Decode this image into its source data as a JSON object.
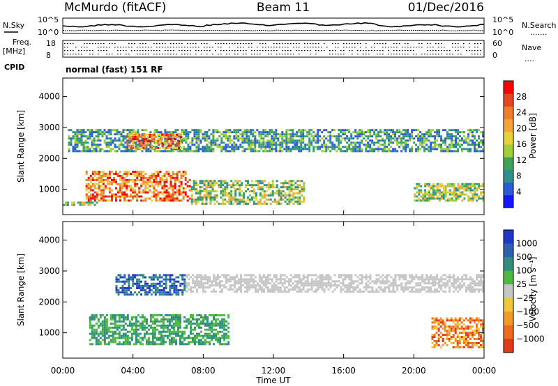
{
  "header": {
    "station": "McMurdo (fitACF)",
    "beam": "Beam 11",
    "date": "01/Dec/2016"
  },
  "status_panel": {
    "nsky_label": "N.Sky",
    "nsearch_label": "N.Search",
    "nsearch_marker": ".......",
    "freq_label": "Freq.",
    "freq_unit": "[MHz]",
    "nave_label": "Nave",
    "nave_marker": "....",
    "cpid_label": "CPID",
    "cpid_text": "normal (fast) 151 RF",
    "noise_ticks": [
      "10^5",
      "10^0"
    ],
    "freq_ticks": [
      "18",
      "8"
    ],
    "nave_ticks": [
      "60",
      "0"
    ]
  },
  "chart_data": [
    {
      "type": "heatmap",
      "title": "",
      "xlabel": "Time UT",
      "ylabel": "Slant Range [km]",
      "x_ticks": [
        "00:00",
        "04:00",
        "08:00",
        "12:00",
        "16:00",
        "20:00",
        "00:00"
      ],
      "y_ticks": [
        1000,
        2000,
        3000,
        4000
      ],
      "ylim": [
        180,
        4600
      ],
      "colorbar": {
        "label": "Power [dB]",
        "ticks": [
          "4",
          "8",
          "12",
          "16",
          "20",
          "24",
          "28"
        ],
        "colors": [
          "#1515ff",
          "#2a5ad6",
          "#2f8f8f",
          "#3fa25a",
          "#9fcf3a",
          "#e8d23a",
          "#f3a53a",
          "#ee7d2e",
          "#e4471f",
          "#ff0000"
        ]
      },
      "echo_bands": [
        {
          "range_km": [
            2200,
            2950
          ],
          "time_h": [
            0.3,
            24.0
          ],
          "level": "low-mid"
        },
        {
          "range_km": [
            2300,
            2800
          ],
          "time_h": [
            3.6,
            6.8
          ],
          "level": "high"
        },
        {
          "range_km": [
            600,
            1600
          ],
          "time_h": [
            1.3,
            7.3
          ],
          "level": "high"
        },
        {
          "range_km": [
            500,
            1300
          ],
          "time_h": [
            7.3,
            13.8
          ],
          "level": "mid"
        },
        {
          "range_km": [
            450,
            600
          ],
          "time_h": [
            0.0,
            2.0
          ],
          "level": "mid"
        },
        {
          "range_km": [
            600,
            1200
          ],
          "time_h": [
            20.0,
            24.0
          ],
          "level": "mid"
        }
      ]
    },
    {
      "type": "heatmap",
      "title": "",
      "xlabel": "Time UT",
      "ylabel": "Slant Range [km]",
      "x_ticks": [
        "00:00",
        "04:00",
        "08:00",
        "12:00",
        "16:00",
        "20:00",
        "00:00"
      ],
      "y_ticks": [
        1000,
        2000,
        3000,
        4000
      ],
      "ylim": [
        180,
        4600
      ],
      "colorbar": {
        "label": "Velocity [m s⁻¹]",
        "ticks": [
          "1000",
          "500",
          "100",
          "25",
          "−25",
          "−100",
          "−500",
          "−1000"
        ],
        "colors": [
          "#1f38c9",
          "#2f5fb0",
          "#2f8f7c",
          "#4bbb3c",
          "#c6c6c6",
          "#f0c63a",
          "#f09a28",
          "#ee6a1e",
          "#e13a18"
        ]
      },
      "echo_bands": [
        {
          "range_km": [
            2300,
            2900
          ],
          "time_h": [
            7.0,
            24.0
          ],
          "level": "ground scatter ~0"
        },
        {
          "range_km": [
            2200,
            2900
          ],
          "time_h": [
            3.0,
            7.0
          ],
          "level": "positive 100-1000"
        },
        {
          "range_km": [
            600,
            1600
          ],
          "time_h": [
            1.5,
            9.5
          ],
          "level": "positive ~100"
        },
        {
          "range_km": [
            500,
            1500
          ],
          "time_h": [
            21.0,
            24.0
          ],
          "level": "negative -100 to -500"
        }
      ]
    }
  ]
}
